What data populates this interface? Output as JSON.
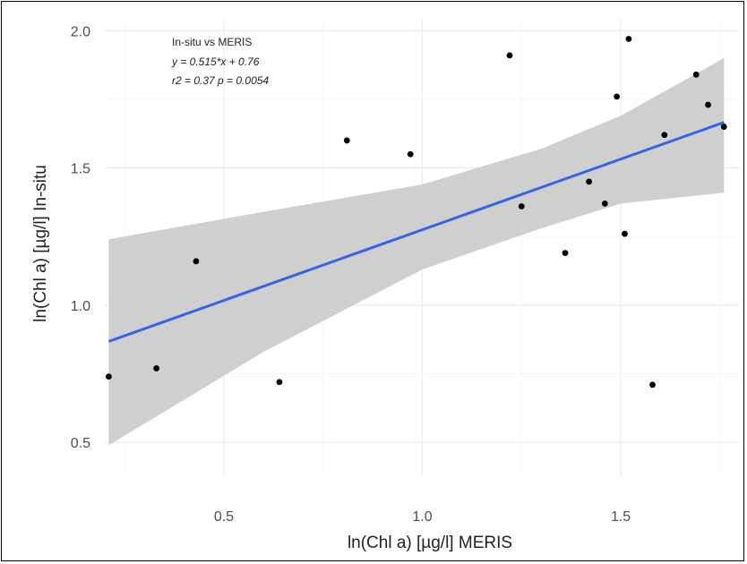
{
  "chart_data": {
    "type": "scatter",
    "xlabel": "ln(Chl a) [µg/l] MERIS",
    "ylabel": "ln(Chl a) [µg/l] In-situ",
    "xlim": [
      0.2,
      1.8
    ],
    "ylim": [
      0.38,
      2.04
    ],
    "x_ticks": [
      0.5,
      1.0,
      1.5
    ],
    "y_ticks": [
      0.5,
      1.0,
      1.5,
      2.0
    ],
    "x_tick_labels": [
      "0.5",
      "1.0",
      "1.5"
    ],
    "y_tick_labels": [
      "0.5",
      "1.0",
      "1.5",
      "2.0"
    ],
    "grid": true,
    "annotation": {
      "title": "In-situ vs MERIS",
      "equation": "y = 0.515*x + 0.76",
      "stats": "r2 = 0.37  p = 0.0054"
    },
    "points": [
      {
        "x": 0.21,
        "y": 0.74
      },
      {
        "x": 0.33,
        "y": 0.77
      },
      {
        "x": 0.43,
        "y": 1.16
      },
      {
        "x": 0.64,
        "y": 0.72
      },
      {
        "x": 0.81,
        "y": 1.6
      },
      {
        "x": 0.97,
        "y": 1.55
      },
      {
        "x": 1.22,
        "y": 1.91
      },
      {
        "x": 1.25,
        "y": 1.36
      },
      {
        "x": 1.36,
        "y": 1.19
      },
      {
        "x": 1.42,
        "y": 1.45
      },
      {
        "x": 1.46,
        "y": 1.37
      },
      {
        "x": 1.49,
        "y": 1.76
      },
      {
        "x": 1.51,
        "y": 1.26
      },
      {
        "x": 1.52,
        "y": 1.97
      },
      {
        "x": 1.58,
        "y": 0.71
      },
      {
        "x": 1.61,
        "y": 1.62
      },
      {
        "x": 1.69,
        "y": 1.84
      },
      {
        "x": 1.72,
        "y": 1.73
      },
      {
        "x": 1.76,
        "y": 1.65
      }
    ],
    "fit_line": {
      "x": [
        0.21,
        1.76
      ],
      "y": [
        0.868,
        1.666
      ],
      "color": "#3366e6"
    },
    "confidence_band": {
      "x": [
        0.21,
        0.6,
        1.0,
        1.3,
        1.5,
        1.76
      ],
      "upper": [
        1.24,
        1.34,
        1.44,
        1.57,
        1.69,
        1.9
      ],
      "lower": [
        0.49,
        0.83,
        1.13,
        1.28,
        1.37,
        1.41
      ],
      "color": "#cfcfcf"
    },
    "point_color": "#000000"
  }
}
